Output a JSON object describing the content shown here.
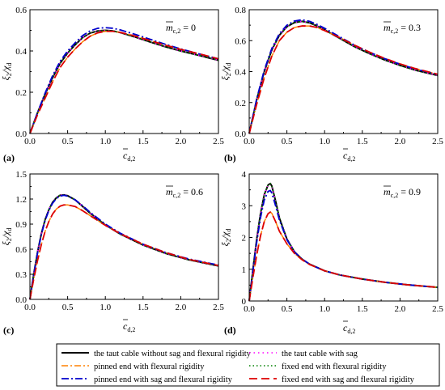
{
  "chart_data": [
    {
      "type": "line",
      "panel": "(a)",
      "annotation": "m̄c,2 = 0",
      "annotation_value": "0",
      "xlim": [
        0,
        2.5
      ],
      "ylim": [
        0,
        0.6
      ],
      "xticks": [
        "0.0",
        "0.5",
        "1.0",
        "1.5",
        "2.0",
        "2.5"
      ],
      "yticks": [
        "0.0",
        "0.2",
        "0.4",
        "0.6"
      ],
      "x": [
        0,
        0.1,
        0.2,
        0.3,
        0.4,
        0.5,
        0.6,
        0.7,
        0.8,
        0.9,
        1.0,
        1.1,
        1.2,
        1.4,
        1.6,
        1.8,
        2.0,
        2.2,
        2.5
      ],
      "series": [
        {
          "key": "s1",
          "values": [
            0,
            0.1,
            0.19,
            0.27,
            0.34,
            0.39,
            0.43,
            0.465,
            0.487,
            0.497,
            0.5,
            0.497,
            0.489,
            0.467,
            0.443,
            0.42,
            0.4,
            0.382,
            0.355
          ]
        },
        {
          "key": "s2",
          "values": [
            0,
            0.1,
            0.19,
            0.27,
            0.34,
            0.39,
            0.43,
            0.465,
            0.487,
            0.497,
            0.5,
            0.497,
            0.489,
            0.467,
            0.443,
            0.42,
            0.4,
            0.382,
            0.355
          ]
        },
        {
          "key": "s3",
          "values": [
            0,
            0.09,
            0.17,
            0.25,
            0.32,
            0.37,
            0.41,
            0.445,
            0.472,
            0.488,
            0.495,
            0.495,
            0.49,
            0.472,
            0.45,
            0.428,
            0.408,
            0.39,
            0.362
          ]
        },
        {
          "key": "s4",
          "values": [
            0,
            0.1,
            0.19,
            0.27,
            0.34,
            0.39,
            0.43,
            0.465,
            0.487,
            0.497,
            0.5,
            0.497,
            0.489,
            0.467,
            0.443,
            0.42,
            0.4,
            0.382,
            0.355
          ]
        },
        {
          "key": "s5",
          "values": [
            0,
            0.1,
            0.195,
            0.28,
            0.35,
            0.4,
            0.44,
            0.475,
            0.498,
            0.51,
            0.513,
            0.51,
            0.502,
            0.48,
            0.456,
            0.432,
            0.41,
            0.39,
            0.362
          ]
        },
        {
          "key": "s6",
          "values": [
            0,
            0.09,
            0.17,
            0.25,
            0.32,
            0.37,
            0.41,
            0.445,
            0.472,
            0.488,
            0.495,
            0.495,
            0.49,
            0.472,
            0.45,
            0.428,
            0.408,
            0.39,
            0.362
          ]
        }
      ]
    },
    {
      "type": "line",
      "panel": "(b)",
      "annotation": "m̄c,2 = 0.3",
      "annotation_value": "0.3",
      "xlim": [
        0,
        2.5
      ],
      "ylim": [
        0,
        0.8
      ],
      "xticks": [
        "0.0",
        "0.5",
        "1.0",
        "1.5",
        "2.0",
        "2.5"
      ],
      "yticks": [
        "0.0",
        "0.2",
        "0.4",
        "0.6",
        "0.8"
      ],
      "x": [
        0,
        0.1,
        0.2,
        0.3,
        0.4,
        0.5,
        0.6,
        0.7,
        0.8,
        0.9,
        1.0,
        1.2,
        1.4,
        1.6,
        1.8,
        2.0,
        2.2,
        2.5
      ],
      "series": [
        {
          "key": "s1",
          "values": [
            0,
            0.22,
            0.4,
            0.54,
            0.635,
            0.69,
            0.717,
            0.725,
            0.715,
            0.695,
            0.67,
            0.615,
            0.56,
            0.515,
            0.475,
            0.44,
            0.41,
            0.375
          ]
        },
        {
          "key": "s2",
          "values": [
            0,
            0.22,
            0.4,
            0.54,
            0.635,
            0.69,
            0.717,
            0.725,
            0.715,
            0.695,
            0.67,
            0.615,
            0.56,
            0.515,
            0.475,
            0.44,
            0.41,
            0.375
          ]
        },
        {
          "key": "s3",
          "values": [
            0,
            0.19,
            0.36,
            0.5,
            0.6,
            0.655,
            0.685,
            0.695,
            0.695,
            0.685,
            0.665,
            0.62,
            0.57,
            0.525,
            0.485,
            0.45,
            0.42,
            0.383
          ]
        },
        {
          "key": "s4",
          "values": [
            0,
            0.22,
            0.4,
            0.54,
            0.635,
            0.69,
            0.717,
            0.725,
            0.715,
            0.695,
            0.67,
            0.615,
            0.56,
            0.515,
            0.475,
            0.44,
            0.41,
            0.375
          ]
        },
        {
          "key": "s5",
          "values": [
            0,
            0.225,
            0.41,
            0.55,
            0.645,
            0.7,
            0.727,
            0.735,
            0.725,
            0.705,
            0.68,
            0.625,
            0.57,
            0.524,
            0.483,
            0.448,
            0.417,
            0.382
          ]
        },
        {
          "key": "s6",
          "values": [
            0,
            0.19,
            0.36,
            0.5,
            0.6,
            0.655,
            0.685,
            0.695,
            0.695,
            0.685,
            0.665,
            0.62,
            0.57,
            0.525,
            0.485,
            0.45,
            0.42,
            0.383
          ]
        }
      ]
    },
    {
      "type": "line",
      "panel": "(c)",
      "annotation": "m̄c,2 = 0.6",
      "annotation_value": "0.6",
      "xlim": [
        0,
        2.5
      ],
      "ylim": [
        0,
        1.5
      ],
      "xticks": [
        "0.0",
        "0.5",
        "1.0",
        "1.5",
        "2.0",
        "2.5"
      ],
      "yticks": [
        "0.0",
        "0.3",
        "0.6",
        "0.9",
        "1.2",
        "1.5"
      ],
      "x": [
        0,
        0.05,
        0.1,
        0.15,
        0.2,
        0.25,
        0.3,
        0.35,
        0.4,
        0.45,
        0.5,
        0.6,
        0.7,
        0.8,
        1.0,
        1.2,
        1.5,
        1.8,
        2.1,
        2.5
      ],
      "series": [
        {
          "key": "s1",
          "values": [
            0,
            0.3,
            0.56,
            0.78,
            0.95,
            1.07,
            1.16,
            1.215,
            1.245,
            1.25,
            1.24,
            1.19,
            1.11,
            1.03,
            0.89,
            0.78,
            0.65,
            0.55,
            0.475,
            0.4
          ]
        },
        {
          "key": "s2",
          "values": [
            0,
            0.3,
            0.56,
            0.78,
            0.95,
            1.07,
            1.16,
            1.215,
            1.245,
            1.25,
            1.24,
            1.19,
            1.11,
            1.03,
            0.89,
            0.78,
            0.65,
            0.55,
            0.475,
            0.4
          ]
        },
        {
          "key": "s3",
          "values": [
            0,
            0.24,
            0.46,
            0.65,
            0.81,
            0.93,
            1.02,
            1.08,
            1.115,
            1.13,
            1.13,
            1.11,
            1.06,
            1.0,
            0.885,
            0.785,
            0.66,
            0.56,
            0.48,
            0.405
          ]
        },
        {
          "key": "s4",
          "values": [
            0,
            0.3,
            0.56,
            0.78,
            0.95,
            1.07,
            1.16,
            1.215,
            1.245,
            1.25,
            1.24,
            1.19,
            1.11,
            1.03,
            0.89,
            0.78,
            0.65,
            0.55,
            0.475,
            0.4
          ]
        },
        {
          "key": "s5",
          "values": [
            0,
            0.29,
            0.55,
            0.77,
            0.94,
            1.06,
            1.15,
            1.205,
            1.235,
            1.245,
            1.235,
            1.19,
            1.12,
            1.04,
            0.9,
            0.79,
            0.66,
            0.56,
            0.485,
            0.41
          ]
        },
        {
          "key": "s6",
          "values": [
            0,
            0.24,
            0.46,
            0.65,
            0.81,
            0.93,
            1.02,
            1.08,
            1.115,
            1.13,
            1.13,
            1.11,
            1.06,
            1.0,
            0.885,
            0.785,
            0.66,
            0.56,
            0.48,
            0.405
          ]
        }
      ]
    },
    {
      "type": "line",
      "panel": "(d)",
      "annotation": "m̄c,2 = 0.9",
      "annotation_value": "0.9",
      "xlim": [
        0,
        2.5
      ],
      "ylim": [
        0,
        4
      ],
      "xticks": [
        "0.0",
        "0.5",
        "1.0",
        "1.5",
        "2.0",
        "2.5"
      ],
      "yticks": [
        "0",
        "1",
        "2",
        "3",
        "4"
      ],
      "x": [
        0,
        0.05,
        0.1,
        0.15,
        0.2,
        0.25,
        0.28,
        0.3,
        0.35,
        0.4,
        0.5,
        0.6,
        0.7,
        0.8,
        1.0,
        1.2,
        1.5,
        1.8,
        2.1,
        2.5
      ],
      "series": [
        {
          "key": "s1",
          "values": [
            0,
            1.0,
            1.95,
            2.75,
            3.35,
            3.65,
            3.7,
            3.62,
            3.15,
            2.62,
            1.95,
            1.55,
            1.32,
            1.16,
            0.95,
            0.82,
            0.69,
            0.59,
            0.51,
            0.43
          ]
        },
        {
          "key": "s2",
          "values": [
            0,
            1.0,
            1.95,
            2.75,
            3.35,
            3.65,
            3.7,
            3.62,
            3.15,
            2.62,
            1.95,
            1.55,
            1.32,
            1.16,
            0.95,
            0.82,
            0.69,
            0.59,
            0.51,
            0.43
          ]
        },
        {
          "key": "s3",
          "values": [
            0,
            0.75,
            1.45,
            2.05,
            2.5,
            2.75,
            2.8,
            2.76,
            2.5,
            2.2,
            1.8,
            1.5,
            1.3,
            1.15,
            0.95,
            0.82,
            0.69,
            0.59,
            0.51,
            0.43
          ]
        },
        {
          "key": "s4",
          "values": [
            0,
            1.0,
            1.95,
            2.75,
            3.35,
            3.65,
            3.7,
            3.62,
            3.15,
            2.62,
            1.95,
            1.55,
            1.32,
            1.16,
            0.95,
            0.82,
            0.69,
            0.59,
            0.51,
            0.43
          ]
        },
        {
          "key": "s5",
          "values": [
            0,
            0.95,
            1.85,
            2.62,
            3.18,
            3.45,
            3.48,
            3.4,
            3.0,
            2.55,
            1.93,
            1.54,
            1.32,
            1.16,
            0.95,
            0.82,
            0.69,
            0.59,
            0.51,
            0.43
          ]
        },
        {
          "key": "s6",
          "values": [
            0,
            0.75,
            1.45,
            2.05,
            2.5,
            2.75,
            2.8,
            2.76,
            2.5,
            2.2,
            1.8,
            1.5,
            1.3,
            1.15,
            0.95,
            0.82,
            0.69,
            0.59,
            0.51,
            0.43
          ]
        }
      ]
    }
  ],
  "legend": [
    {
      "key": "s1",
      "label": "the taut cable without sag and flexural rigidity",
      "color": "#000000",
      "dash": "",
      "width": 2
    },
    {
      "key": "s2",
      "label": "the taut cable with sag",
      "color": "#ff00ff",
      "dash": "1.5,4",
      "width": 1.6
    },
    {
      "key": "s3",
      "label": "pinned end with flexural rigidity",
      "color": "#ff8000",
      "dash": "8,3,2,3",
      "width": 1.5
    },
    {
      "key": "s4",
      "label": "fixed end with flexural rigidity",
      "color": "#008000",
      "dash": "1.5,3",
      "width": 1.6
    },
    {
      "key": "s5",
      "label": "pinned end with sag and flexural rigidity",
      "color": "#0000cc",
      "dash": "9,3,2,3",
      "width": 1.8
    },
    {
      "key": "s6",
      "label": "fixed end with sag and flexural rigidity",
      "color": "#dd0000",
      "dash": "10,5",
      "width": 1.8
    }
  ]
}
